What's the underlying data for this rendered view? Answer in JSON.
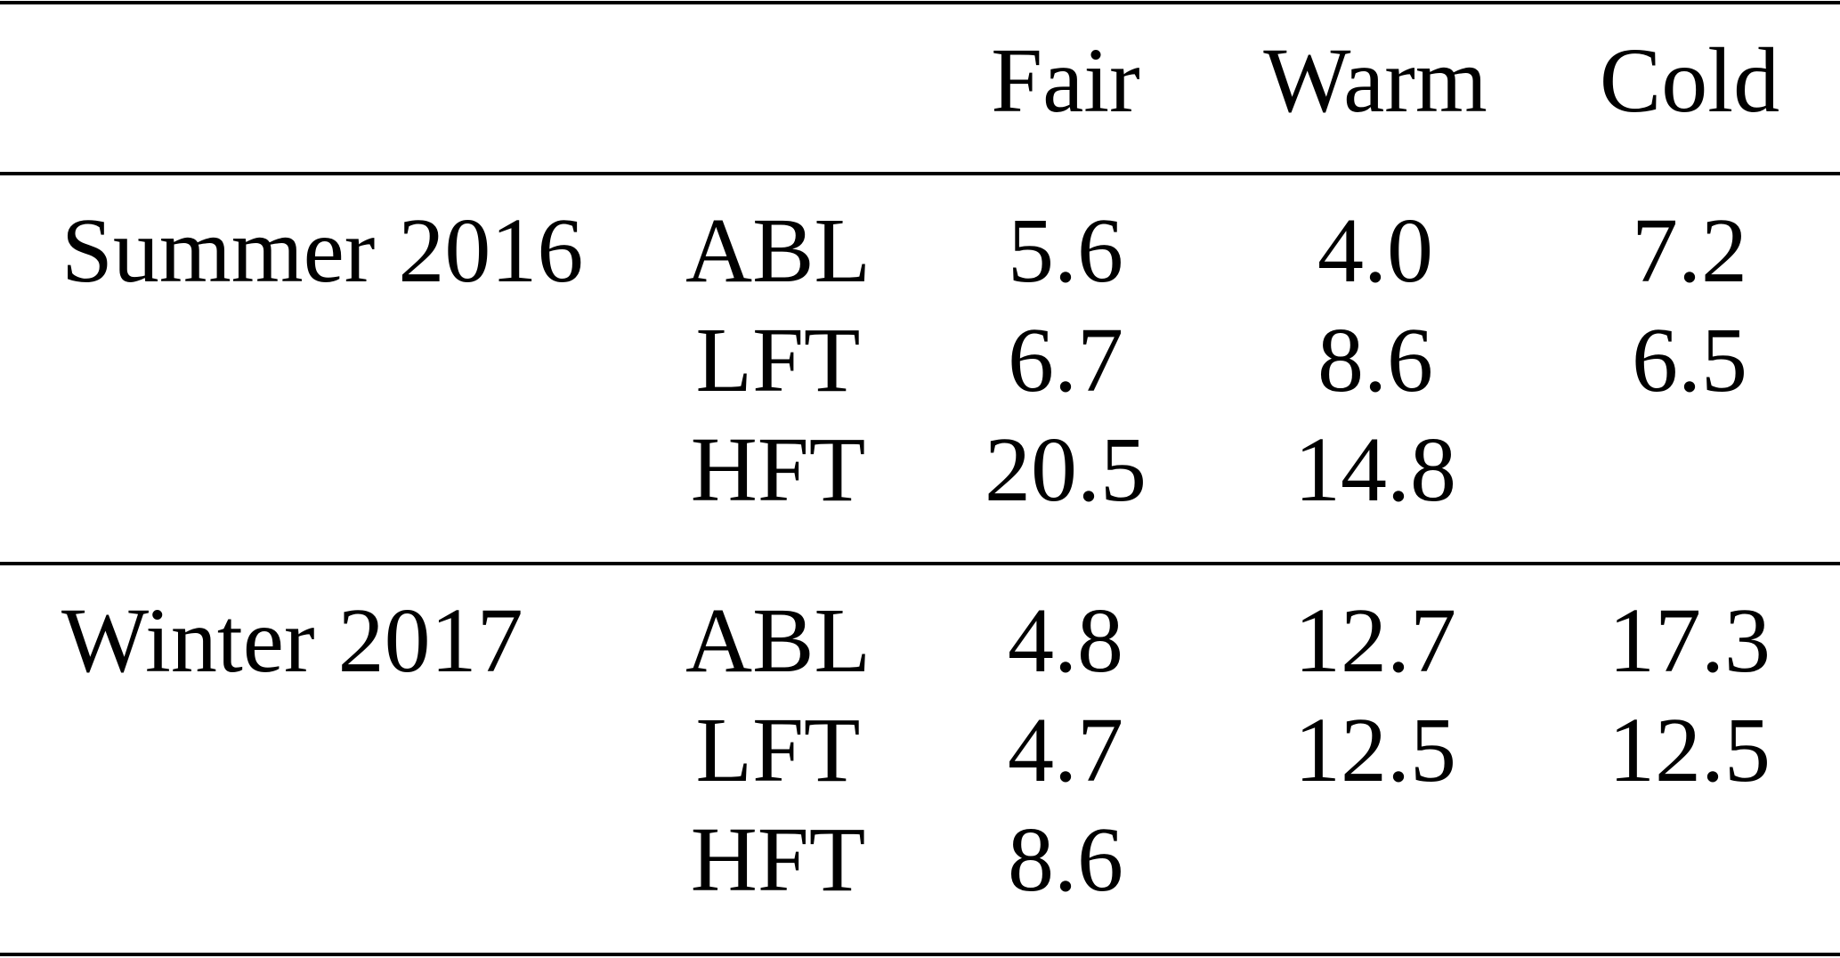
{
  "table": {
    "columns": [
      "Fair",
      "Warm",
      "Cold"
    ],
    "groups": [
      {
        "name": "Summer 2016",
        "rows": [
          {
            "label": "ABL",
            "values": [
              "5.6",
              "4.0",
              "7.2"
            ]
          },
          {
            "label": "LFT",
            "values": [
              "6.7",
              "8.6",
              "6.5"
            ]
          },
          {
            "label": "HFT",
            "values": [
              "20.5",
              "14.8",
              null
            ]
          }
        ]
      },
      {
        "name": "Winter 2017",
        "rows": [
          {
            "label": "ABL",
            "values": [
              "4.8",
              "12.7",
              "17.3"
            ]
          },
          {
            "label": "LFT",
            "values": [
              "4.7",
              "12.5",
              "12.5"
            ]
          },
          {
            "label": "HFT",
            "values": [
              "8.6",
              null,
              null
            ]
          }
        ]
      }
    ]
  }
}
